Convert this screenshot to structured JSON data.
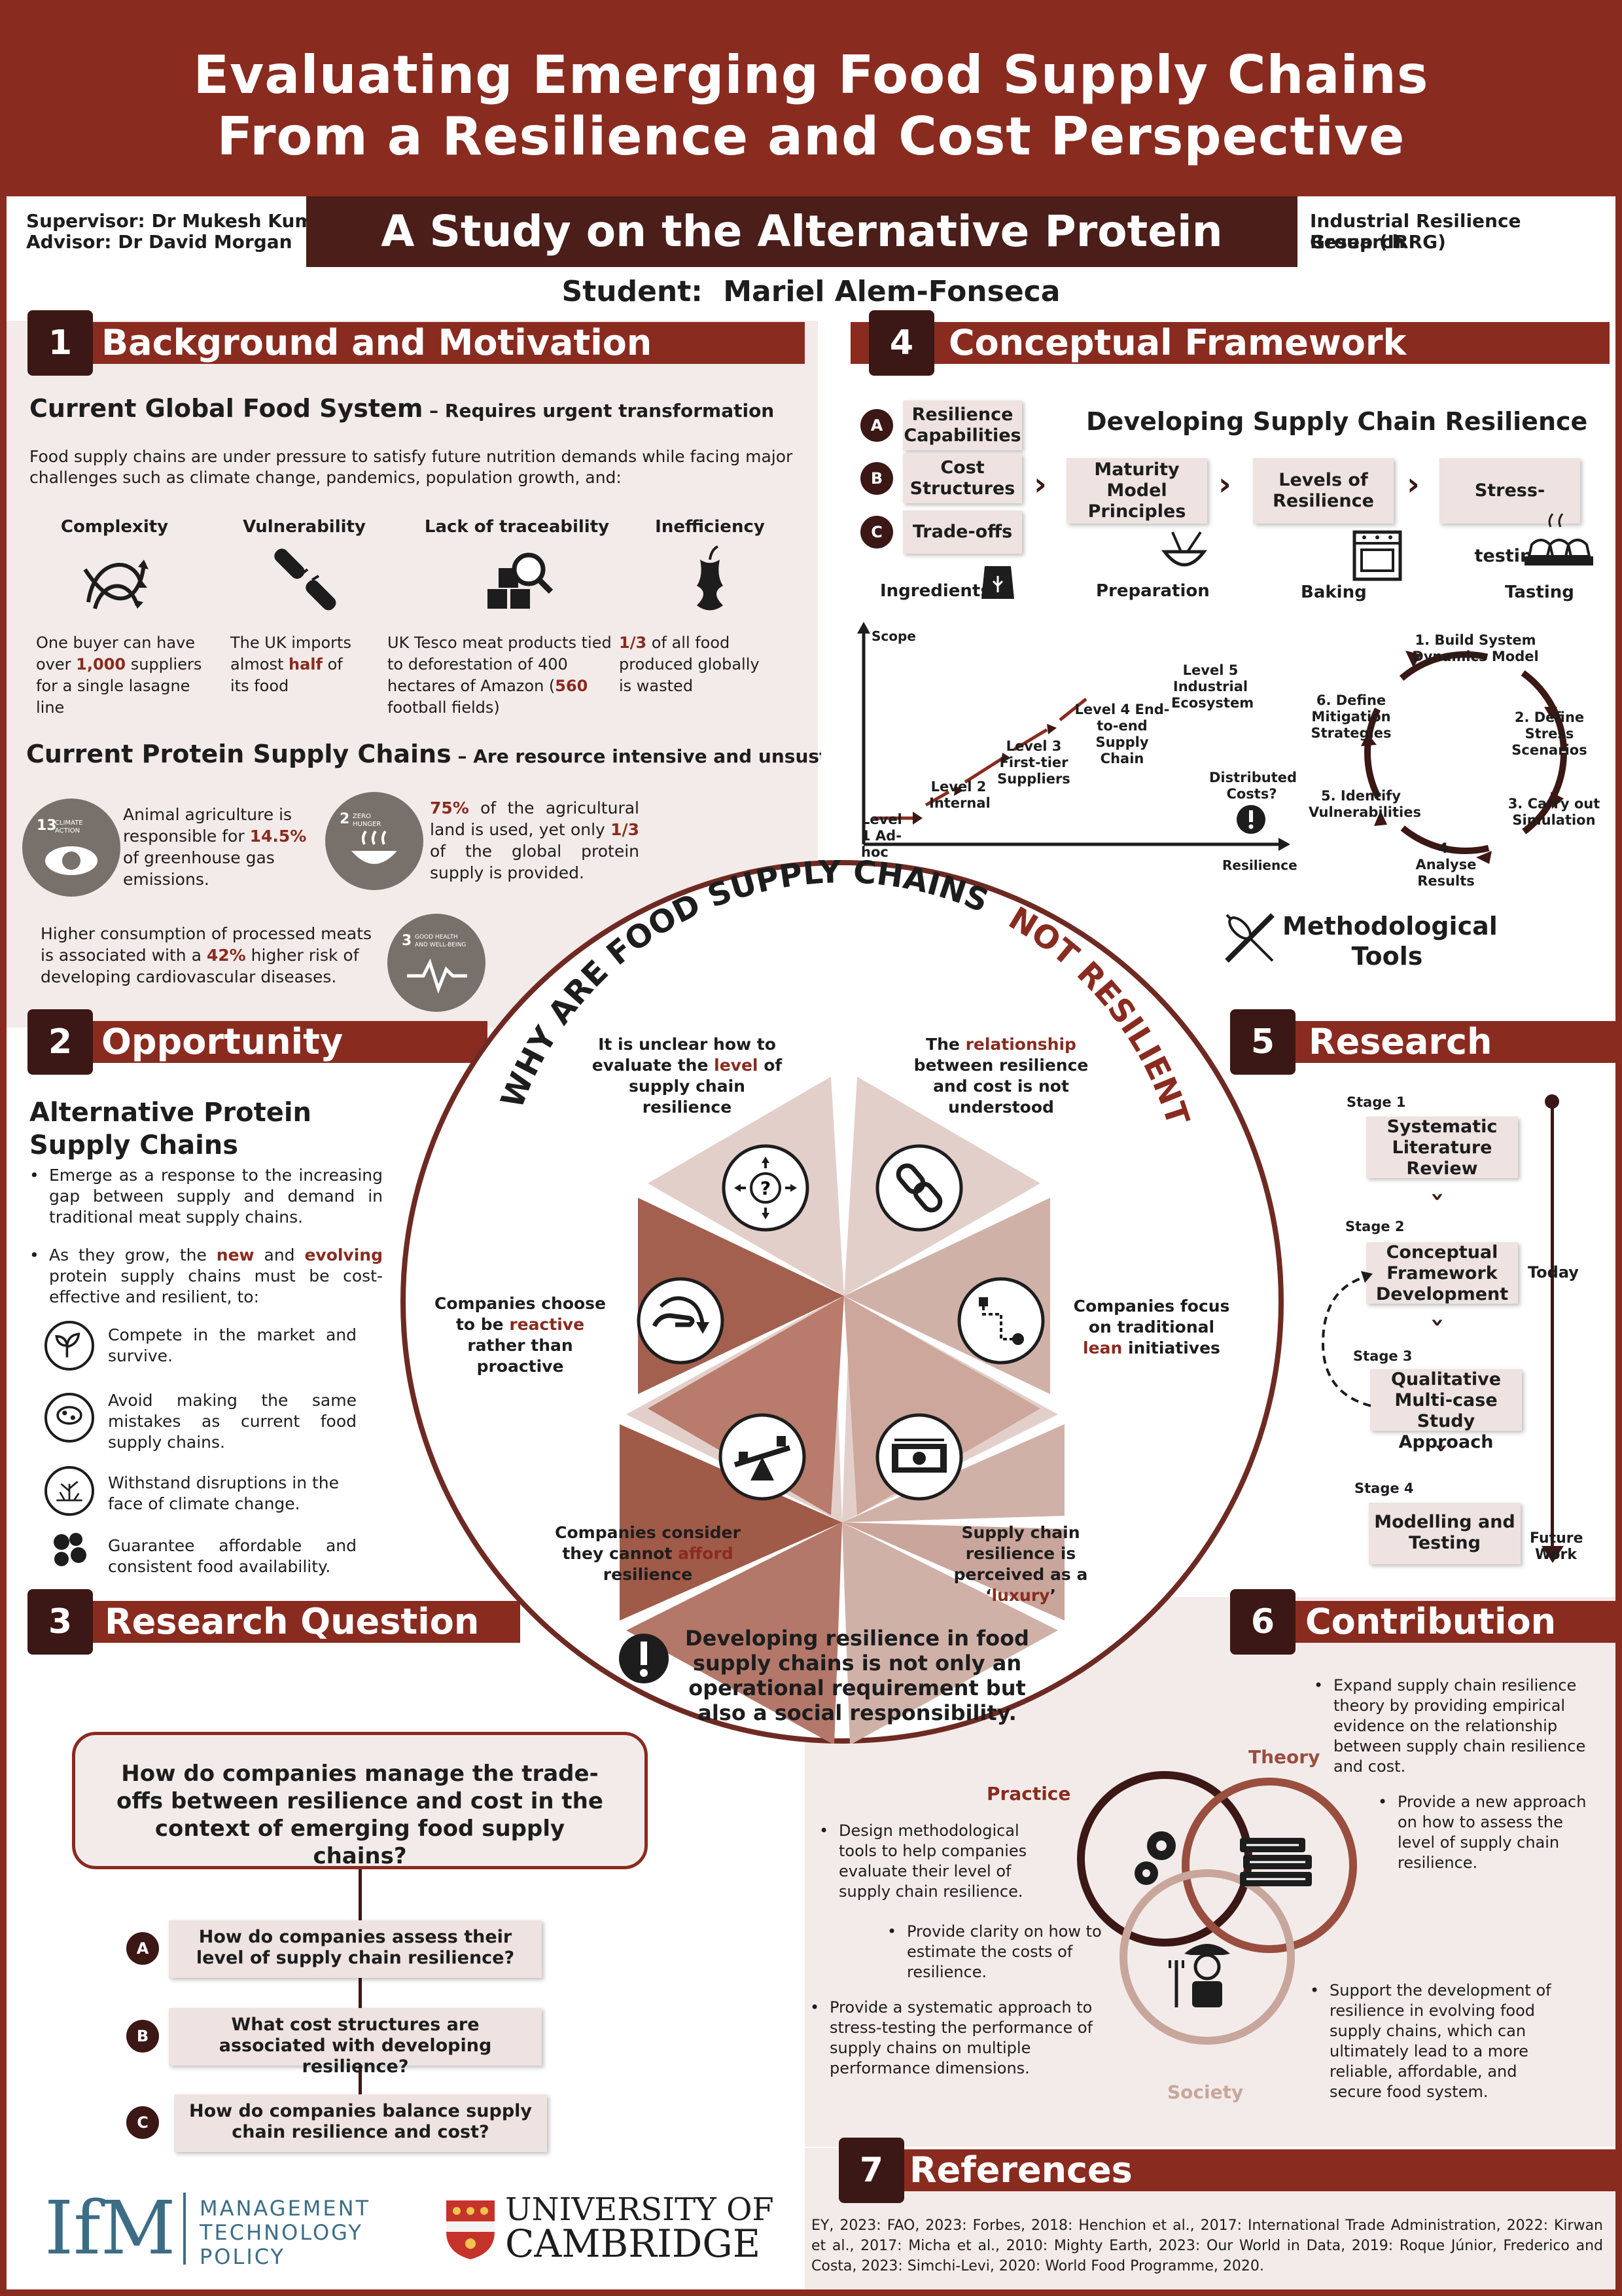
{
  "header": {
    "title_line1": "Evaluating Emerging Food Supply Chains",
    "title_line2": "From a Resilience and Cost Perspective",
    "subtitle": "A Study on the Alternative Protein Industry",
    "supervisor": "Supervisor: Dr Mukesh Kumar",
    "advisor": "Advisor: Dr David Morgan",
    "group_line1": "Industrial Resilience Research",
    "group_line2": "Group (IRRG)",
    "student_label": "Student:",
    "student_name": "Mariel Alem-Fonseca"
  },
  "s1": {
    "num": "1",
    "title": "Background and Motivation",
    "sub1_title": "Current Global Food System",
    "sub1_tag": " – Requires urgent transformation",
    "intro": "Food supply chains are under pressure to satisfy future nutrition demands while facing major challenges such as climate change, pandemics, population growth, and:",
    "challenges": [
      {
        "name": "Complexity",
        "text": "One buyer can have over 1,000 suppliers for a single lasagne line",
        "icon": "tangled-arrows-icon"
      },
      {
        "name": "Vulnerability",
        "text": "The UK imports almost half of its food",
        "icon": "broken-chain-icon"
      },
      {
        "name": "Lack of traceability",
        "text": "UK Tesco meat products tied to deforestation of 400 hectares of Amazon (560 football fields)",
        "icon": "boxes-magnifier-icon"
      },
      {
        "name": "Inefficiency",
        "text": "1/3 of all food produced globally is wasted",
        "icon": "apple-core-icon"
      }
    ],
    "sub2_title": "Current Protein Supply Chains",
    "sub2_tag": " – Are resource intensive and unsustainable",
    "facts": [
      {
        "sdg": "13 CLIMATE ACTION",
        "text": "Animal agriculture is responsible for 14.5% of greenhouse gas emissions."
      },
      {
        "sdg": "2 ZERO HUNGER",
        "text": "75% of the agricultural land is used, yet only 1/3 of the global protein supply is provided."
      },
      {
        "sdg": "3 GOOD HEALTH AND WELL-BEING",
        "text": "Higher consumption of processed meats is associated with a 42% higher risk of developing cardiovascular diseases."
      }
    ]
  },
  "s2": {
    "num": "2",
    "title": "Opportunity",
    "sub_title": "Alternative Protein Supply Chains",
    "bullet1": "Emerge as a response to the increasing gap between supply and demand in traditional meat supply chains.",
    "bullet2": "As they grow, the new and evolving protein supply chains must be cost-effective and resilient, to:",
    "items": [
      {
        "text": "Compete in the market and survive.",
        "icon": "sprout-icon"
      },
      {
        "text": "Avoid making the same mistakes as current food supply chains.",
        "icon": "meat-icon"
      },
      {
        "text": "Withstand disruptions in the face of climate change.",
        "icon": "dry-plant-icon"
      },
      {
        "text": "Guarantee affordable and consistent food availability.",
        "icon": "peas-icon"
      }
    ]
  },
  "s3": {
    "num": "3",
    "title": "Research Question",
    "main_question": "How do companies manage the trade-offs between resilience and cost in the context of emerging food supply chains?",
    "subs": [
      {
        "letter": "A",
        "text": "How do companies assess their level of supply chain resilience?"
      },
      {
        "letter": "B",
        "text": "What cost structures are associated with developing resilience?"
      },
      {
        "letter": "C",
        "text": "How do companies balance supply chain resilience and cost?"
      }
    ]
  },
  "s4": {
    "num": "4",
    "title": "Conceptual Framework",
    "inputs": [
      {
        "letter": "A",
        "text": "Resilience Capabilities"
      },
      {
        "letter": "B",
        "text": "Cost Structures"
      },
      {
        "letter": "C",
        "text": "Trade-offs"
      }
    ],
    "dev_title": "Developing Supply Chain Resilience",
    "steps": [
      "Maturity Model Principles",
      "Levels of Resilience",
      "Stress-testing"
    ],
    "phases": [
      "Ingredients",
      "Preparation",
      "Baking",
      "Tasting"
    ],
    "staircase": {
      "y_axis": "Scope",
      "x_axis": "Resilience",
      "levels": [
        "Level 1 Ad-hoc",
        "Level 2 Internal",
        "Level 3 First-tier Suppliers",
        "Level 4 End-to-end Supply Chain",
        "Level 5 Industrial Ecosystem"
      ],
      "note": "Distributed Costs?"
    },
    "cycle": [
      "1. Build System Dynamics Model",
      "2. Define Stress Scenarios",
      "3. Carry out Simulation",
      "4. Analyse Results",
      "5. Identify Vulnerabilities",
      "6. Define Mitigation Strategies"
    ],
    "tools_label": "Methodological Tools"
  },
  "center": {
    "arc_title": "WHY ARE FOOD SUPPLY CHAINS",
    "arc_title2": "NOT RESILIENT?",
    "reasons": [
      {
        "pre": "It is unclear how to evaluate the ",
        "hl": "level",
        "post": " of supply chain resilience",
        "icon": "question-compass-icon"
      },
      {
        "pre": "The ",
        "hl": "relationship",
        "post": " between resilience and cost is not understood",
        "icon": "chain-link-icon"
      },
      {
        "pre": "Companies focus on traditional ",
        "hl": "lean",
        "post": " initiatives",
        "icon": "lean-path-icon"
      },
      {
        "pre": "Supply chain resilience is perceived as a ‘",
        "hl": "luxury",
        "post": "’",
        "icon": "money-icon"
      },
      {
        "pre": "Companies consider they cannot ",
        "hl": "afford",
        "post": " resilience",
        "icon": "seesaw-icon"
      },
      {
        "pre": "Companies choose to be ",
        "hl": "reactive",
        "post": " rather than proactive",
        "icon": "hand-catch-icon"
      }
    ],
    "bottom_note": "Developing resilience in food supply chains is not only an operational requirement but also a social responsibility."
  },
  "s5": {
    "num": "5",
    "title": "Research Design",
    "stages": [
      {
        "stage": "Stage 1",
        "text": "Systematic Literature Review"
      },
      {
        "stage": "Stage 2",
        "text": "Conceptual Framework Development"
      },
      {
        "stage": "Stage 3",
        "text": "Qualitative Multi-case Study Approach"
      },
      {
        "stage": "Stage 4",
        "text": "Modelling and Testing"
      }
    ],
    "today": "Today",
    "future": "Future Work"
  },
  "s6": {
    "num": "6",
    "title": "Contribution",
    "theory_label": "Theory",
    "practice_label": "Practice",
    "society_label": "Society",
    "theory_bullets": [
      "Expand supply chain resilience theory by providing empirical evidence on the relationship between supply chain resilience and cost.",
      "Provide a new approach on how to assess the level of supply chain resilience."
    ],
    "practice_bullets": [
      "Design methodological tools to help companies evaluate their level of supply chain resilience.",
      "Provide clarity on how to estimate the costs of resilience.",
      "Provide a systematic approach to stress-testing the performance of supply chains on multiple performance dimensions."
    ],
    "society_bullet": "Support the development of resilience in evolving food supply chains, which can ultimately lead to a more reliable, affordable, and secure food system."
  },
  "s7": {
    "num": "7",
    "title": "References",
    "text": "EY, 2023: FAO, 2023: Forbes, 2018: Henchion et al., 2017: International Trade Administration, 2022: Kirwan et al., 2017: Micha et al., 2010: Mighty Earth, 2023: Our World in Data, 2019: Roque Júnior, Frederico and Costa, 2023: Simchi-Levi, 2020: World Food Programme, 2020."
  },
  "logos": {
    "ifm": "IfM",
    "ifm_line1": "MANAGEMENT",
    "ifm_line2": "TECHNOLOGY",
    "ifm_line3": "POLICY",
    "cam_line1": "UNIVERSITY OF",
    "cam_line2": "CAMBRIDGE"
  },
  "colors": {
    "primary": "#8a2b20",
    "dark": "#3b1815",
    "panel": "#f3ebe9"
  }
}
